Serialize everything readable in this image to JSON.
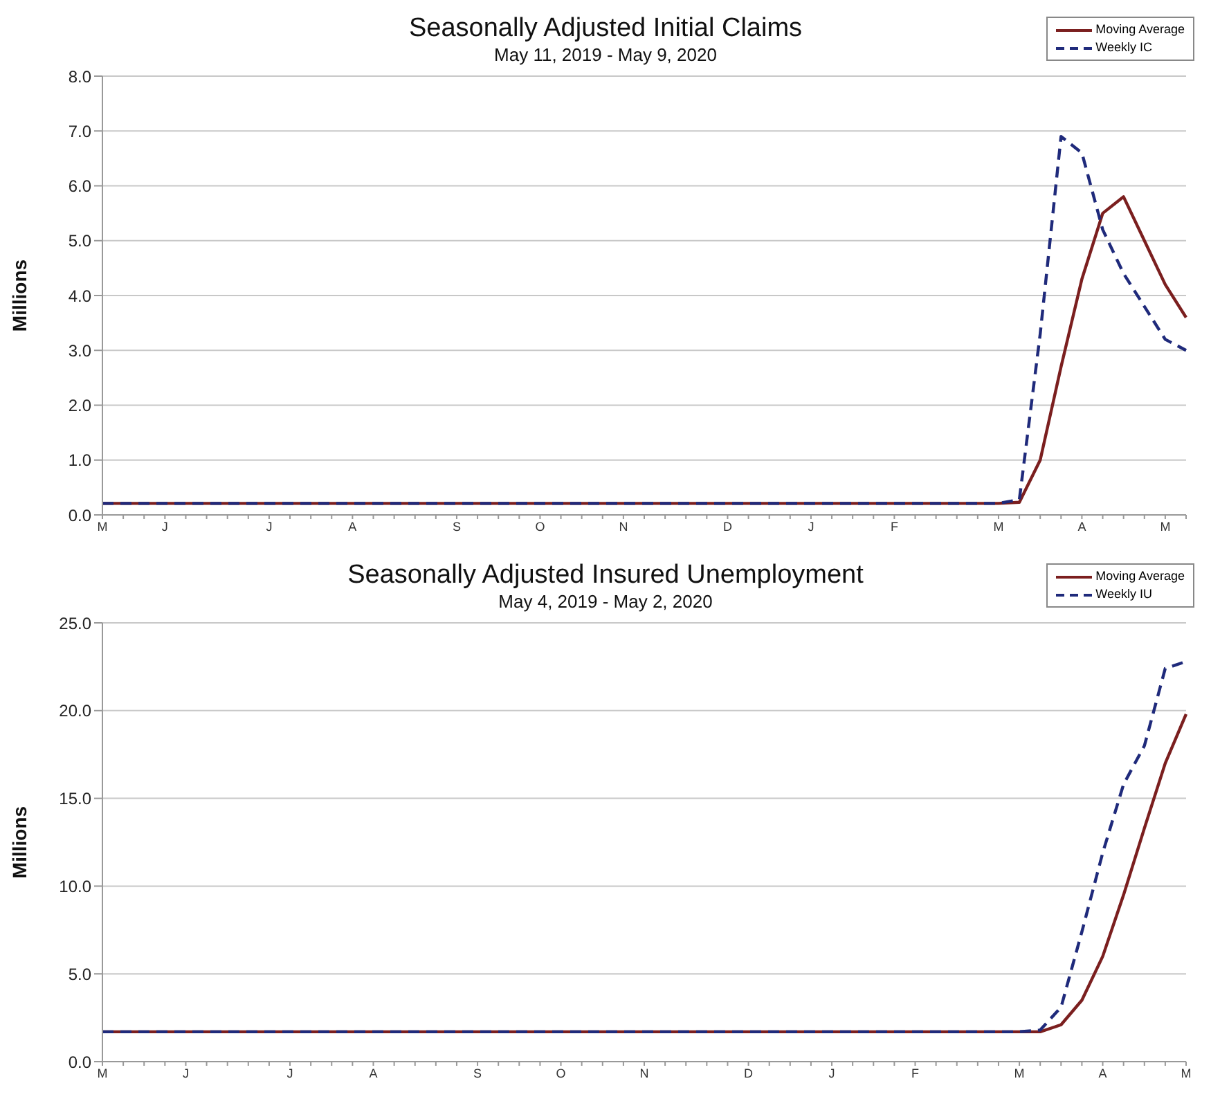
{
  "chart_data": [
    {
      "type": "line",
      "title": "Seasonally Adjusted Initial Claims",
      "subtitle": "May 11, 2019 - May 9, 2020",
      "ylabel": "Millions",
      "categories": [
        "M",
        null,
        null,
        "J",
        null,
        null,
        null,
        null,
        "J",
        null,
        null,
        null,
        "A",
        null,
        null,
        null,
        null,
        "S",
        null,
        null,
        null,
        "O",
        null,
        null,
        null,
        "N",
        null,
        null,
        null,
        null,
        "D",
        null,
        null,
        null,
        "J",
        null,
        null,
        null,
        "F",
        null,
        null,
        null,
        null,
        "M",
        null,
        null,
        null,
        "A",
        null,
        null,
        null,
        "M",
        null
      ],
      "series": [
        {
          "name": "Moving Average",
          "color": "#7b1f1f",
          "line_style": "solid",
          "values": [
            0.21,
            0.21,
            0.21,
            0.21,
            0.21,
            0.21,
            0.21,
            0.21,
            0.21,
            0.21,
            0.21,
            0.21,
            0.21,
            0.21,
            0.21,
            0.21,
            0.21,
            0.21,
            0.21,
            0.21,
            0.21,
            0.21,
            0.21,
            0.21,
            0.21,
            0.21,
            0.21,
            0.21,
            0.21,
            0.21,
            0.21,
            0.21,
            0.21,
            0.21,
            0.21,
            0.21,
            0.21,
            0.21,
            0.21,
            0.21,
            0.21,
            0.21,
            0.21,
            0.21,
            0.23,
            1.0,
            2.7,
            4.3,
            5.5,
            5.8,
            5.0,
            4.2,
            3.6
          ]
        },
        {
          "name": "Weekly IC",
          "color": "#1f2a7b",
          "line_style": "dashed",
          "values": [
            0.21,
            0.21,
            0.21,
            0.21,
            0.21,
            0.21,
            0.21,
            0.21,
            0.21,
            0.21,
            0.21,
            0.21,
            0.21,
            0.21,
            0.21,
            0.21,
            0.21,
            0.21,
            0.21,
            0.21,
            0.21,
            0.21,
            0.21,
            0.21,
            0.21,
            0.21,
            0.21,
            0.21,
            0.21,
            0.21,
            0.21,
            0.21,
            0.21,
            0.21,
            0.21,
            0.21,
            0.21,
            0.21,
            0.21,
            0.21,
            0.21,
            0.21,
            0.21,
            0.21,
            0.28,
            3.3,
            6.9,
            6.6,
            5.2,
            4.4,
            3.8,
            3.2,
            3.0
          ]
        }
      ],
      "ylim": [
        0,
        8
      ],
      "yticks": [
        {
          "value": 0,
          "label": "0.0"
        },
        {
          "value": 1,
          "label": "1.0"
        },
        {
          "value": 2,
          "label": "2.0"
        },
        {
          "value": 3,
          "label": "3.0"
        },
        {
          "value": 4,
          "label": "4.0"
        },
        {
          "value": 5,
          "label": "5.0"
        },
        {
          "value": 6,
          "label": "6.0"
        },
        {
          "value": 7,
          "label": "7.0"
        },
        {
          "value": 8,
          "label": "8.0"
        }
      ],
      "grid": "y",
      "legend": "top right"
    },
    {
      "type": "line",
      "title": "Seasonally Adjusted Insured Unemployment",
      "subtitle": "May 4, 2019 - May 2, 2020",
      "ylabel": "Millions",
      "categories": [
        "M",
        null,
        null,
        null,
        "J",
        null,
        null,
        null,
        null,
        "J",
        null,
        null,
        null,
        "A",
        null,
        null,
        null,
        null,
        "S",
        null,
        null,
        null,
        "O",
        null,
        null,
        null,
        "N",
        null,
        null,
        null,
        null,
        "D",
        null,
        null,
        null,
        "J",
        null,
        null,
        null,
        "F",
        null,
        null,
        null,
        null,
        "M",
        null,
        null,
        null,
        "A",
        null,
        null,
        null,
        "M"
      ],
      "series": [
        {
          "name": "Moving Average",
          "color": "#7b1f1f",
          "line_style": "solid",
          "values": [
            1.7,
            1.7,
            1.7,
            1.7,
            1.7,
            1.7,
            1.7,
            1.7,
            1.7,
            1.7,
            1.7,
            1.7,
            1.7,
            1.7,
            1.7,
            1.7,
            1.7,
            1.7,
            1.7,
            1.7,
            1.7,
            1.7,
            1.7,
            1.7,
            1.7,
            1.7,
            1.7,
            1.7,
            1.7,
            1.7,
            1.7,
            1.7,
            1.7,
            1.7,
            1.7,
            1.7,
            1.7,
            1.7,
            1.7,
            1.7,
            1.7,
            1.7,
            1.7,
            1.7,
            1.7,
            1.7,
            2.1,
            3.5,
            6.0,
            9.5,
            13.3,
            17.0,
            19.8
          ]
        },
        {
          "name": "Weekly IU",
          "color": "#1f2a7b",
          "line_style": "dashed",
          "values": [
            1.7,
            1.7,
            1.7,
            1.7,
            1.7,
            1.7,
            1.7,
            1.7,
            1.7,
            1.7,
            1.7,
            1.7,
            1.7,
            1.7,
            1.7,
            1.7,
            1.7,
            1.7,
            1.7,
            1.7,
            1.7,
            1.7,
            1.7,
            1.7,
            1.7,
            1.7,
            1.7,
            1.7,
            1.7,
            1.7,
            1.7,
            1.7,
            1.7,
            1.7,
            1.7,
            1.7,
            1.7,
            1.7,
            1.7,
            1.7,
            1.7,
            1.7,
            1.7,
            1.7,
            1.7,
            1.8,
            3.1,
            7.4,
            11.9,
            15.8,
            18.0,
            22.4,
            22.8
          ]
        }
      ],
      "ylim": [
        0,
        25
      ],
      "yticks": [
        {
          "value": 0,
          "label": "0.0"
        },
        {
          "value": 5,
          "label": "5.0"
        },
        {
          "value": 10,
          "label": "10.0"
        },
        {
          "value": 15,
          "label": "15.0"
        },
        {
          "value": 20,
          "label": "20.0"
        },
        {
          "value": 25,
          "label": "25.0"
        }
      ],
      "grid": "y",
      "legend": "top right"
    }
  ]
}
